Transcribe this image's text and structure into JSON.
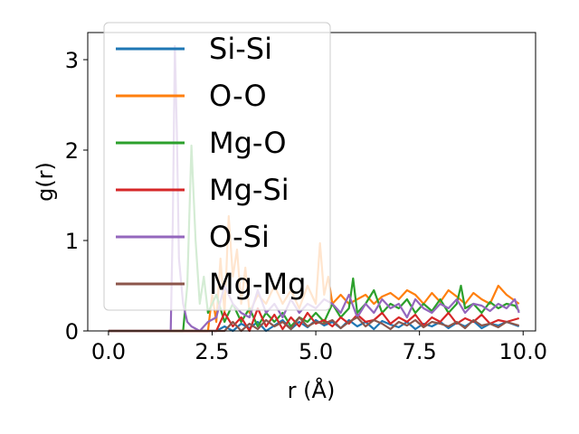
{
  "chart_data": {
    "type": "line",
    "xlabel": "r (Å)",
    "ylabel": "g(r)",
    "xlim": [
      -0.5,
      10.3
    ],
    "ylim": [
      0,
      3.3
    ],
    "xticks": [
      0.0,
      2.5,
      5.0,
      7.5,
      10.0
    ],
    "xtick_labels": [
      "0.0",
      "2.5",
      "5.0",
      "7.5",
      "10.0"
    ],
    "yticks": [
      0,
      1,
      2,
      3
    ],
    "ytick_labels": [
      "0",
      "1",
      "2",
      "3"
    ],
    "grid": false,
    "legend_position": "upper-left",
    "series": [
      {
        "name": "Si-Si",
        "color": "#1f77b4",
        "x": [
          0,
          1,
          2,
          2.6,
          2.8,
          3.0,
          3.2,
          3.4,
          3.6,
          3.8,
          4.0,
          4.2,
          4.4,
          4.6,
          4.8,
          5.0,
          5.2,
          5.4,
          5.6,
          5.8,
          6.0,
          6.2,
          6.4,
          6.6,
          6.8,
          7.0,
          7.2,
          7.4,
          7.6,
          7.8,
          8.0,
          8.2,
          8.4,
          8.6,
          8.8,
          9.0,
          9.2,
          9.4,
          9.6,
          9.9
        ],
        "y": [
          0,
          0,
          0,
          0,
          0.05,
          0,
          0.08,
          0.03,
          0.1,
          0,
          0.06,
          0.12,
          0.02,
          0.1,
          0.04,
          0.12,
          0.06,
          0.1,
          0.03,
          0.12,
          0.05,
          0.1,
          0.02,
          0.11,
          0.07,
          0.04,
          0.1,
          0.02,
          0.08,
          0.05,
          0.1,
          0.03,
          0.09,
          0.05,
          0.11,
          0.03,
          0.08,
          0.06,
          0.1,
          0.05
        ]
      },
      {
        "name": "O-O",
        "color": "#ff7f0e",
        "x": [
          0,
          1,
          2,
          2.4,
          2.5,
          2.6,
          2.7,
          2.8,
          2.9,
          3.0,
          3.1,
          3.2,
          3.3,
          3.4,
          3.6,
          3.8,
          4.0,
          4.2,
          4.4,
          4.6,
          4.8,
          5.0,
          5.1,
          5.2,
          5.3,
          5.4,
          5.5,
          5.6,
          5.8,
          6.0,
          6.2,
          6.4,
          6.6,
          6.8,
          7.0,
          7.2,
          7.4,
          7.6,
          7.8,
          8.0,
          8.2,
          8.4,
          8.6,
          8.8,
          9.0,
          9.2,
          9.4,
          9.6,
          9.9
        ],
        "y": [
          0,
          0,
          0,
          0,
          0.4,
          0.1,
          0.8,
          0.2,
          1.27,
          0.6,
          0.9,
          0.3,
          0.7,
          0.2,
          0.4,
          0.3,
          0.5,
          0.3,
          0.45,
          0.25,
          0.5,
          0.3,
          0.97,
          0.4,
          0.6,
          0.3,
          0.35,
          0.4,
          0.3,
          0.35,
          0.4,
          0.3,
          0.38,
          0.42,
          0.35,
          0.45,
          0.4,
          0.3,
          0.42,
          0.32,
          0.45,
          0.38,
          0.3,
          0.42,
          0.35,
          0.3,
          0.5,
          0.4,
          0.3
        ]
      },
      {
        "name": "Mg-O",
        "color": "#2ca02c",
        "x": [
          0,
          1,
          1.7,
          1.8,
          1.9,
          2.0,
          2.1,
          2.2,
          2.3,
          2.4,
          2.6,
          2.8,
          3.0,
          3.2,
          3.4,
          3.6,
          3.8,
          4.0,
          4.2,
          4.4,
          4.6,
          4.8,
          5.0,
          5.2,
          5.4,
          5.6,
          5.8,
          5.9,
          6.0,
          6.2,
          6.4,
          6.6,
          6.8,
          7.0,
          7.2,
          7.4,
          7.6,
          7.8,
          8.0,
          8.2,
          8.4,
          8.5,
          8.6,
          8.8,
          9.0,
          9.2,
          9.4,
          9.6,
          9.8,
          9.9
        ],
        "y": [
          0,
          0,
          0,
          0,
          0.5,
          2.05,
          1.0,
          0.3,
          0.6,
          0.2,
          0.4,
          0.1,
          0.3,
          0.1,
          0.25,
          0.05,
          0.2,
          0.1,
          0.2,
          0.05,
          0.15,
          0.1,
          0.2,
          0.1,
          0.3,
          0.15,
          0.25,
          0.58,
          0.2,
          0.3,
          0.45,
          0.2,
          0.3,
          0.25,
          0.35,
          0.2,
          0.3,
          0.22,
          0.35,
          0.2,
          0.3,
          0.5,
          0.25,
          0.3,
          0.2,
          0.32,
          0.25,
          0.3,
          0.28,
          0.22
        ]
      },
      {
        "name": "Mg-Si",
        "color": "#d62728",
        "x": [
          0,
          1,
          2,
          2.6,
          2.8,
          3.0,
          3.2,
          3.4,
          3.6,
          3.8,
          4.0,
          4.2,
          4.4,
          4.6,
          4.8,
          5.0,
          5.2,
          5.4,
          5.6,
          5.8,
          6.0,
          6.2,
          6.4,
          6.6,
          6.8,
          7.0,
          7.2,
          7.4,
          7.6,
          7.8,
          8.0,
          8.2,
          8.4,
          8.6,
          8.8,
          9.0,
          9.2,
          9.4,
          9.6,
          9.9
        ],
        "y": [
          0,
          0,
          0,
          0,
          0.2,
          0.05,
          0.15,
          0,
          0.25,
          0.05,
          0.18,
          0.02,
          0.15,
          0.05,
          0.2,
          0.08,
          0.12,
          0.05,
          0.15,
          0.08,
          0.18,
          0.1,
          0.12,
          0.2,
          0.08,
          0.15,
          0.1,
          0.18,
          0.06,
          0.15,
          0.1,
          0.2,
          0.08,
          0.14,
          0.1,
          0.18,
          0.08,
          0.12,
          0.1,
          0.14
        ]
      },
      {
        "name": "O-Si",
        "color": "#9467bd",
        "x": [
          0,
          1,
          1.4,
          1.5,
          1.55,
          1.6,
          1.65,
          1.7,
          1.8,
          1.9,
          2.0,
          2.2,
          2.4,
          2.6,
          2.8,
          3.0,
          3.2,
          3.4,
          3.6,
          3.8,
          4.0,
          4.2,
          4.4,
          4.6,
          4.8,
          5.0,
          5.2,
          5.4,
          5.6,
          5.8,
          6.0,
          6.2,
          6.4,
          6.6,
          6.8,
          7.0,
          7.2,
          7.4,
          7.6,
          7.8,
          8.0,
          8.2,
          8.4,
          8.6,
          8.8,
          9.0,
          9.2,
          9.4,
          9.6,
          9.8,
          9.9
        ],
        "y": [
          0,
          0,
          0,
          0,
          1.2,
          3.15,
          2.2,
          0.8,
          0.3,
          0.1,
          0.05,
          0,
          0.1,
          0.15,
          0.5,
          0.3,
          0.2,
          0.15,
          0.45,
          0.2,
          0.3,
          0.15,
          0.35,
          0.2,
          0.3,
          0.25,
          0.35,
          0.3,
          0.2,
          0.4,
          0.15,
          0.3,
          0.2,
          0.35,
          0.25,
          0.3,
          0.15,
          0.35,
          0.25,
          0.2,
          0.3,
          0.25,
          0.35,
          0.2,
          0.3,
          0.28,
          0.22,
          0.3,
          0.25,
          0.35,
          0.2
        ]
      },
      {
        "name": "Mg-Mg",
        "color": "#8c564b",
        "x": [
          0,
          1,
          2,
          2.8,
          3.0,
          3.2,
          3.4,
          3.6,
          3.8,
          4.0,
          4.2,
          4.4,
          4.6,
          4.8,
          5.0,
          5.2,
          5.4,
          5.6,
          5.8,
          6.0,
          6.2,
          6.4,
          6.6,
          6.8,
          7.0,
          7.2,
          7.4,
          7.6,
          7.8,
          8.0,
          8.2,
          8.4,
          8.6,
          8.8,
          9.0,
          9.2,
          9.4,
          9.6,
          9.9
        ],
        "y": [
          0,
          0,
          0,
          0,
          0.1,
          0,
          0.08,
          0.02,
          0.12,
          0.05,
          0.1,
          0.02,
          0.15,
          0.05,
          0.1,
          0.08,
          0.12,
          0.03,
          0.1,
          0.15,
          0.05,
          0.12,
          0.08,
          0.02,
          0.1,
          0.06,
          0.12,
          0.04,
          0.1,
          0.08,
          0.05,
          0.1,
          0.03,
          0.12,
          0.06,
          0.08,
          0.04,
          0.1,
          0.06
        ]
      }
    ]
  }
}
